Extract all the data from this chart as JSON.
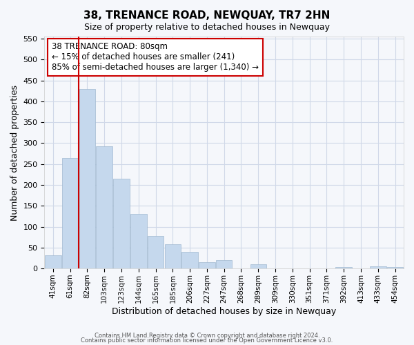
{
  "title": "38, TRENANCE ROAD, NEWQUAY, TR7 2HN",
  "subtitle": "Size of property relative to detached houses in Newquay",
  "xlabel": "Distribution of detached houses by size in Newquay",
  "ylabel": "Number of detached properties",
  "footer_line1": "Contains HM Land Registry data © Crown copyright and database right 2024.",
  "footer_line2": "Contains public sector information licensed under the Open Government Licence v3.0.",
  "bin_labels": [
    "41sqm",
    "61sqm",
    "82sqm",
    "103sqm",
    "123sqm",
    "144sqm",
    "165sqm",
    "185sqm",
    "206sqm",
    "227sqm",
    "247sqm",
    "268sqm",
    "289sqm",
    "309sqm",
    "330sqm",
    "351sqm",
    "371sqm",
    "392sqm",
    "413sqm",
    "433sqm",
    "454sqm"
  ],
  "bar_heights": [
    32,
    265,
    430,
    293,
    215,
    130,
    78,
    58,
    40,
    15,
    20,
    0,
    10,
    0,
    0,
    0,
    0,
    4,
    0,
    5,
    4
  ],
  "bar_color": "#c5d8ed",
  "bar_edge_color": "#a0b8d0",
  "grid_color": "#d0d8e8",
  "vline_x_idx": 2,
  "vline_color": "#cc0000",
  "annotation_text": "38 TRENANCE ROAD: 80sqm\n← 15% of detached houses are smaller (241)\n85% of semi-detached houses are larger (1,340) →",
  "annotation_box_color": "#ffffff",
  "annotation_box_edge": "#cc0000",
  "ylim": [
    0,
    555
  ],
  "yticks": [
    0,
    50,
    100,
    150,
    200,
    250,
    300,
    350,
    400,
    450,
    500,
    550
  ],
  "background_color": "#f5f7fb"
}
